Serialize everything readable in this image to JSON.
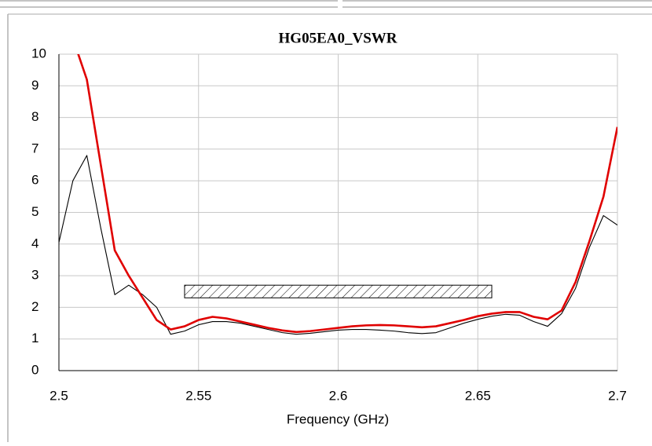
{
  "chart_data": {
    "type": "line",
    "title": "HG05EA0_VSWR",
    "xlabel": "Frequency (GHz)",
    "x": [
      2.5,
      2.505,
      2.51,
      2.515,
      2.52,
      2.525,
      2.53,
      2.535,
      2.54,
      2.545,
      2.55,
      2.555,
      2.56,
      2.565,
      2.57,
      2.575,
      2.58,
      2.585,
      2.59,
      2.595,
      2.6,
      2.605,
      2.61,
      2.615,
      2.62,
      2.625,
      2.63,
      2.635,
      2.64,
      2.645,
      2.65,
      2.655,
      2.66,
      2.665,
      2.67,
      2.675,
      2.68,
      2.685,
      2.69,
      2.695,
      2.7
    ],
    "series": [
      {
        "color": "#000000",
        "values": [
          4.05,
          6.0,
          6.8,
          4.5,
          2.4,
          2.7,
          2.4,
          2.0,
          1.15,
          1.25,
          1.45,
          1.55,
          1.55,
          1.5,
          1.4,
          1.3,
          1.2,
          1.15,
          1.18,
          1.23,
          1.28,
          1.3,
          1.3,
          1.28,
          1.25,
          1.2,
          1.17,
          1.2,
          1.35,
          1.5,
          1.62,
          1.72,
          1.78,
          1.75,
          1.55,
          1.4,
          1.8,
          2.6,
          3.9,
          4.9,
          4.6
        ]
      },
      {
        "color": "#e00000",
        "values": [
          null,
          10.5,
          9.2,
          6.5,
          3.8,
          3.0,
          2.3,
          1.6,
          1.3,
          1.4,
          1.6,
          1.7,
          1.65,
          1.55,
          1.45,
          1.35,
          1.27,
          1.22,
          1.25,
          1.3,
          1.35,
          1.4,
          1.43,
          1.44,
          1.43,
          1.4,
          1.37,
          1.4,
          1.5,
          1.6,
          1.72,
          1.8,
          1.85,
          1.85,
          1.7,
          1.62,
          1.9,
          2.8,
          4.1,
          5.5,
          7.7
        ]
      }
    ],
    "spec": {
      "x": [
        2.545,
        2.655
      ],
      "y": [
        2.3,
        2.7
      ]
    },
    "xlim": [
      2.5,
      2.7
    ],
    "xticks": [
      2.5,
      2.55,
      2.6,
      2.65,
      2.7
    ],
    "ylim": [
      0,
      10
    ],
    "yticks": [
      0,
      1,
      2,
      3,
      4,
      5,
      6,
      7,
      8,
      9,
      10
    ],
    "grid": true
  }
}
